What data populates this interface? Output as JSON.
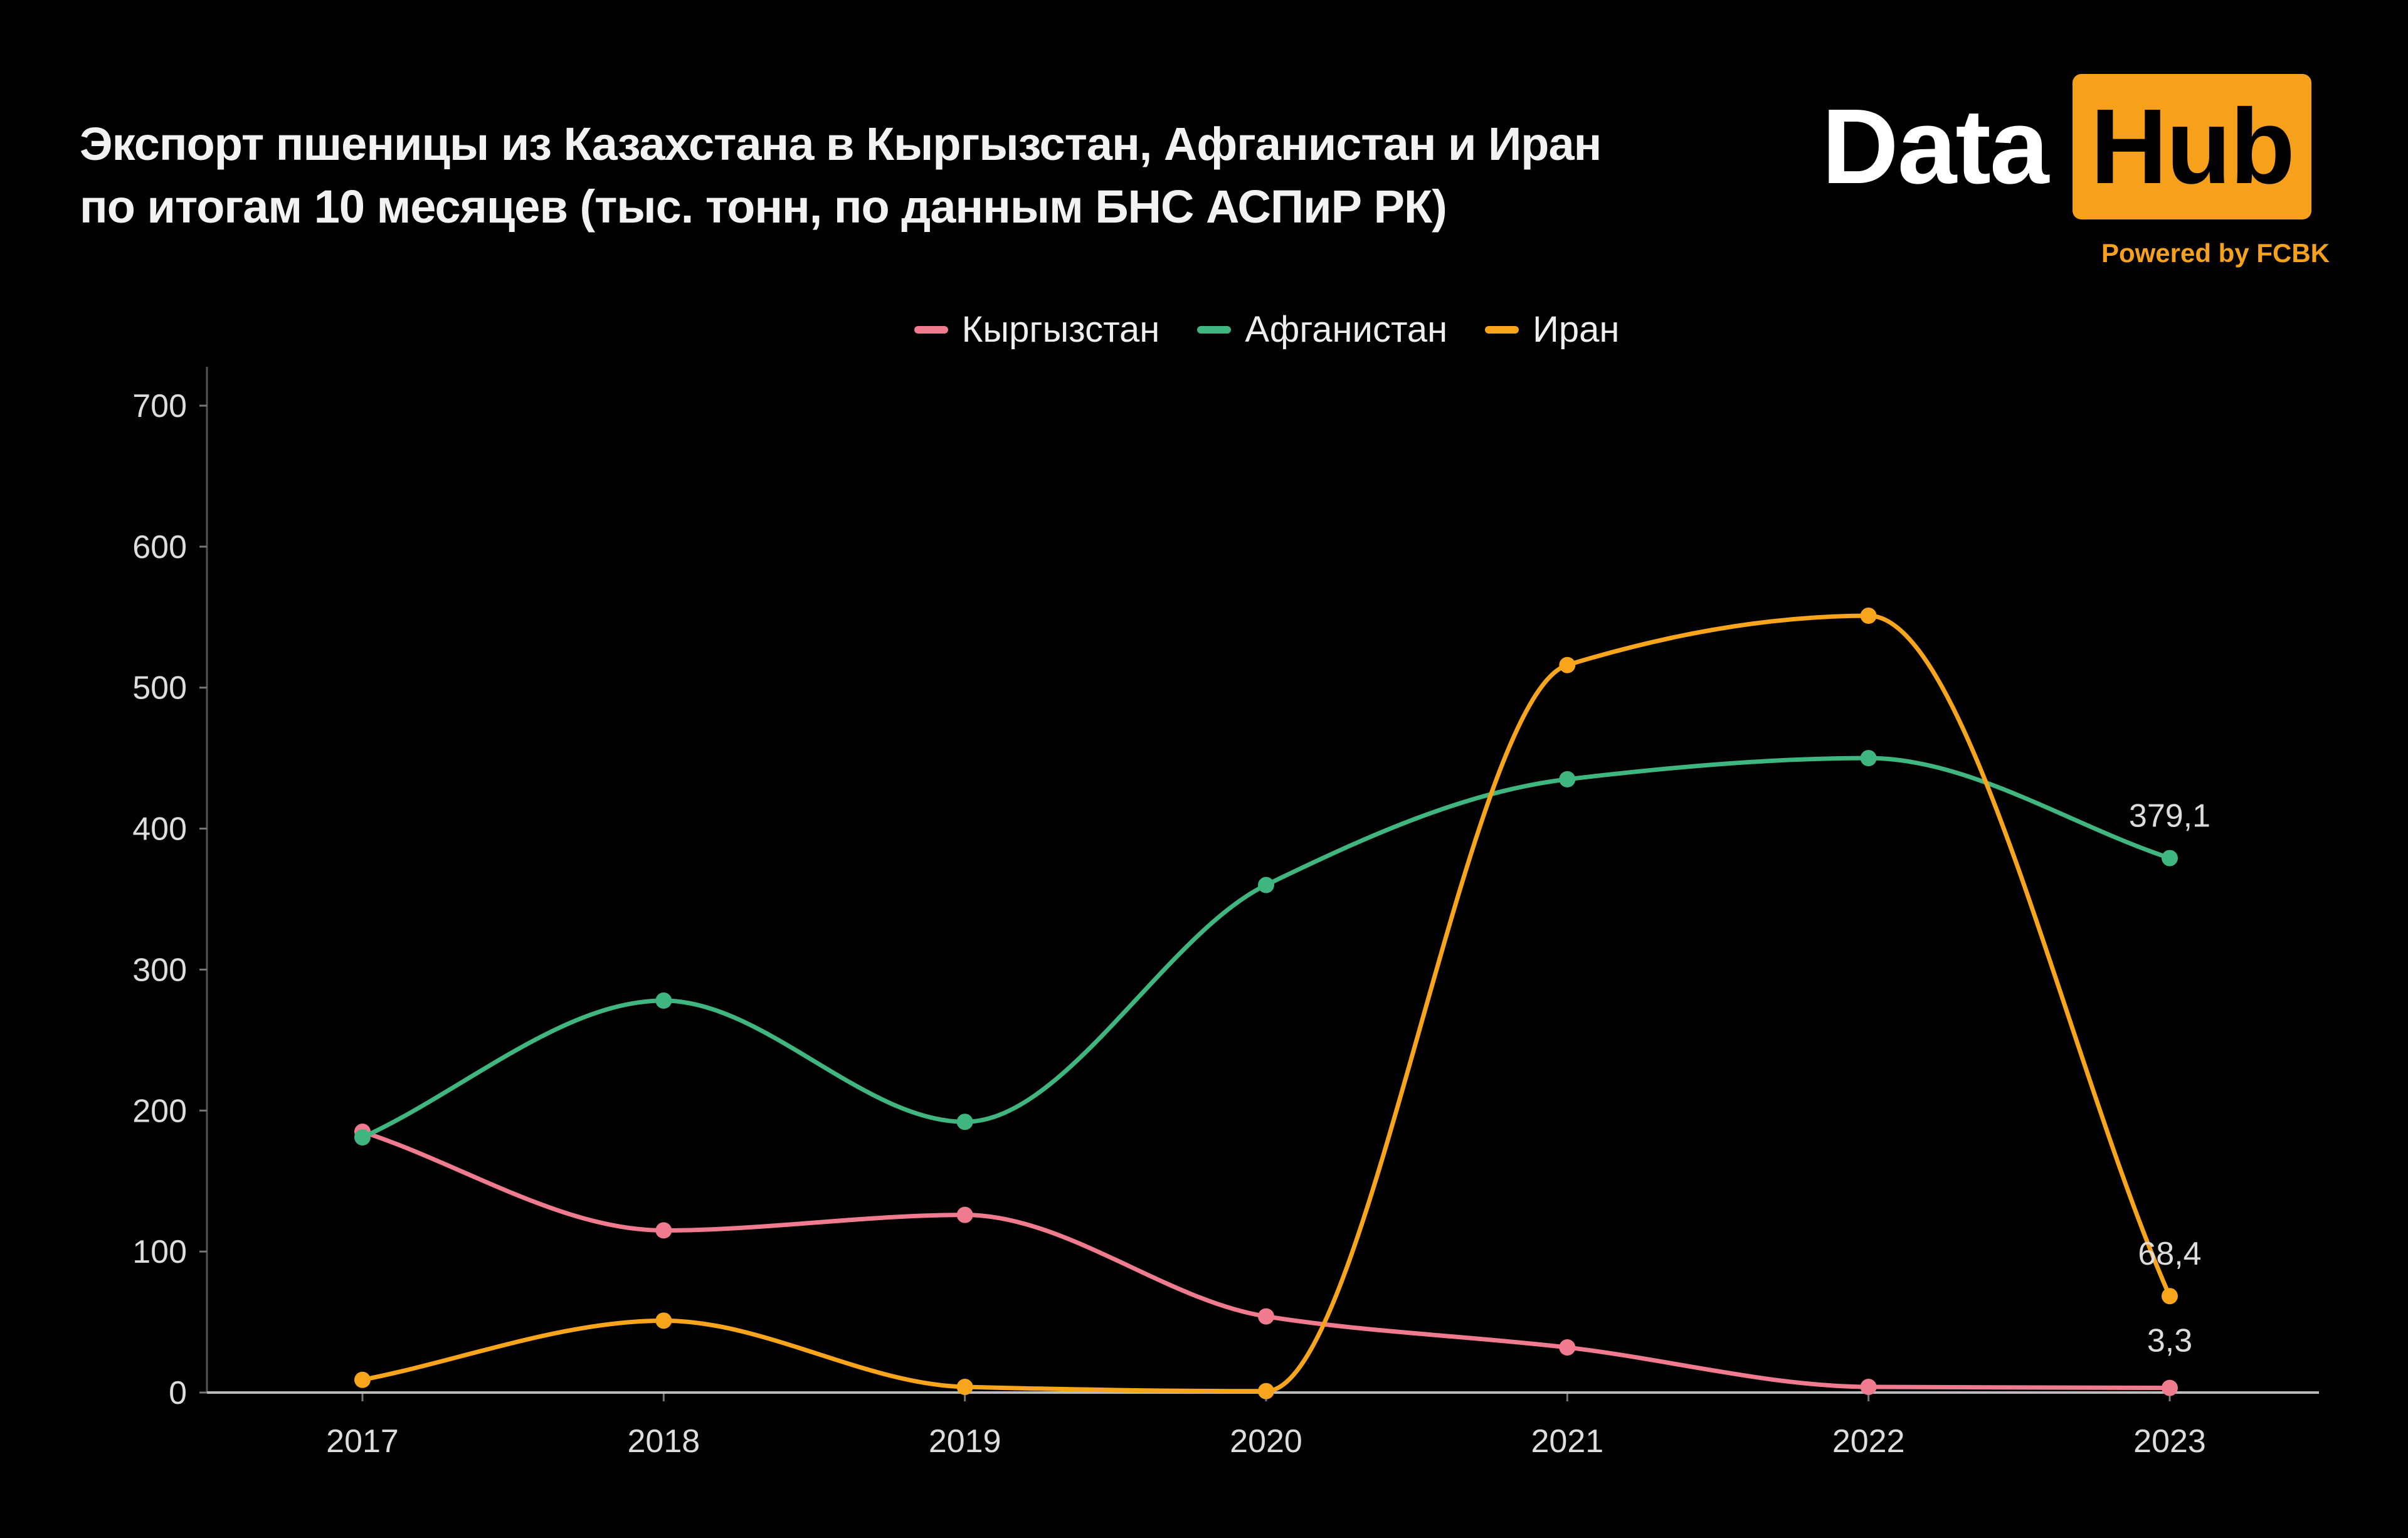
{
  "title_line1": "Экспорт пшеницы из Казахстана в Кыргызстан, Афганистан и Иран",
  "title_line2": "по итогам 10 месяцев (тыс. тонн, по данным БНС АСПиР РК)",
  "logo": {
    "word1": "Data",
    "word2": "Hub",
    "tagline": "Powered by FCBK",
    "accent": "#f7a11a"
  },
  "chart_data": {
    "type": "line",
    "title": "Экспорт пшеницы из Казахстана в Кыргызстан, Афганистан и Иран по итогам 10 месяцев (тыс. тонн, по данным БНС АСПиР РК)",
    "x": [
      "2017",
      "2018",
      "2019",
      "2020",
      "2021",
      "2022",
      "2023"
    ],
    "yticks": [
      "0",
      "100",
      "200",
      "300",
      "400",
      "500",
      "600",
      "700"
    ],
    "ylim": [
      0,
      700
    ],
    "grid": false,
    "legend": "top-center",
    "smooth": true,
    "series": [
      {
        "name": "Кыргызстан",
        "color": "#f07a8e",
        "values": [
          185,
          115,
          126,
          54,
          32,
          4,
          3.3
        ],
        "last_label": "3,3"
      },
      {
        "name": "Афганистан",
        "color": "#3fb57f",
        "values": [
          181,
          278,
          192,
          360,
          435,
          450,
          379.1
        ],
        "last_label": "379,1"
      },
      {
        "name": "Иран",
        "color": "#f9a51b",
        "values": [
          9,
          51,
          4,
          1,
          516,
          551,
          68.4
        ],
        "last_label": "68,4"
      }
    ]
  }
}
